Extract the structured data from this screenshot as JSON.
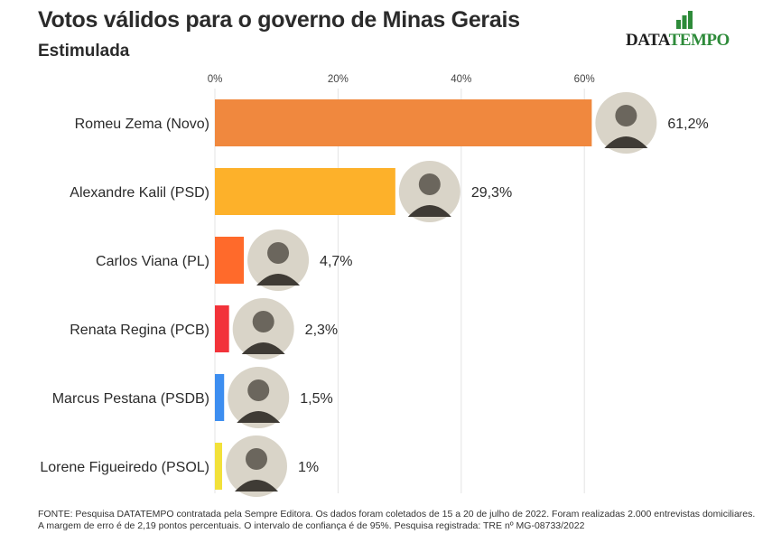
{
  "header": {
    "title": "Votos válidos para o governo de Minas Gerais",
    "subtitle": "Estimulada"
  },
  "logo": {
    "text_a": "DATA",
    "text_b": "TEMPO",
    "icon": "bar-chart-logo-icon",
    "color_a": "#1f1f1f",
    "color_b": "#2e8b3a"
  },
  "footer": {
    "line1": "FONTE: Pesquisa DATATEMPO contratada pela Sempre Editora. Os dados foram coletados de 15 a 20 de julho de 2022. Foram realizadas 2.000 entrevistas domiciliares.",
    "line2": "A margem de erro é de 2,19 pontos percentuais. O intervalo de confiança é de 95%. Pesquisa registrada: TRE nº MG-08733/2022"
  },
  "chart_data": {
    "type": "bar",
    "orientation": "horizontal",
    "categories": [
      "Romeu Zema (Novo)",
      "Alexandre Kalil (PSD)",
      "Carlos Viana (PL)",
      "Renata Regina (PCB)",
      "Marcus Pestana (PSDB)",
      "Lorene Figueiredo (PSOL)"
    ],
    "values": [
      61.2,
      29.3,
      4.7,
      2.3,
      1.5,
      1
    ],
    "value_labels": [
      "61,2%",
      "29,3%",
      "4,7%",
      "2,3%",
      "1,5%",
      "1%"
    ],
    "colors": [
      "#f0883e",
      "#fdb12a",
      "#ff6a2b",
      "#f2333a",
      "#3d8ef0",
      "#f2e13a"
    ],
    "xlim": [
      0,
      70
    ],
    "xticks": [
      0,
      20,
      40,
      60
    ],
    "xtick_labels": [
      "0%",
      "20%",
      "40%",
      "60%"
    ],
    "xlabel": "",
    "ylabel": "",
    "grid": true,
    "axis_position": "top"
  }
}
